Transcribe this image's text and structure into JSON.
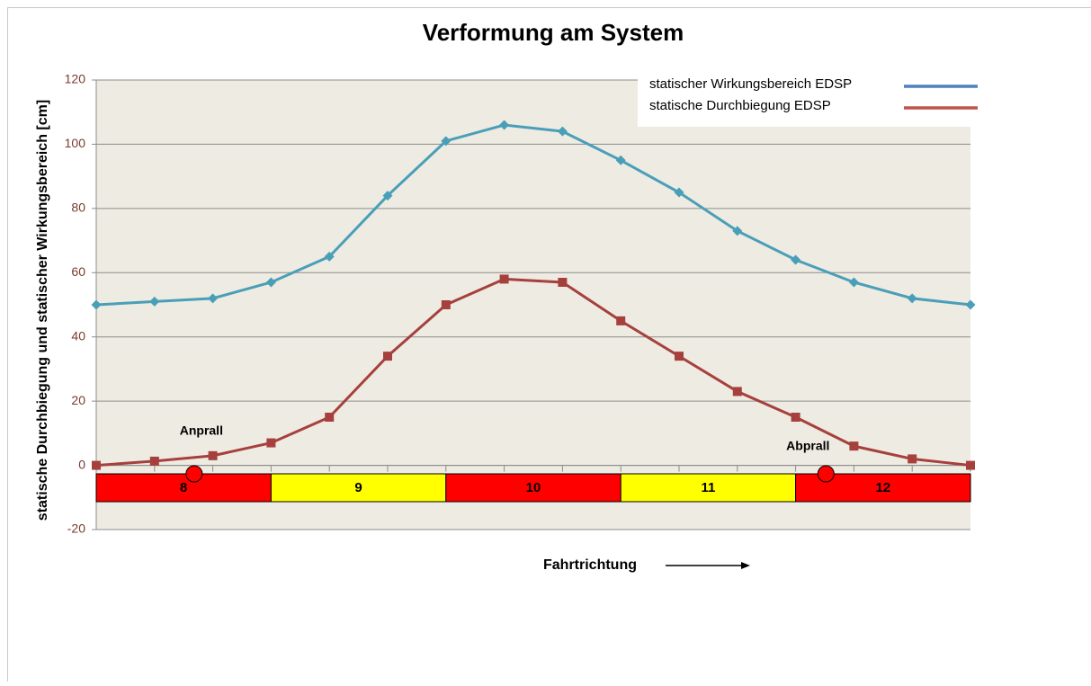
{
  "chart_data": {
    "type": "line",
    "title": "Verformung am System",
    "y_label": "statische Durchbiegung und statischer Wirkungsbereich [cm]",
    "x_label": "Fahrtrichtung",
    "categories": [
      null,
      null,
      null,
      null,
      null,
      null,
      null,
      null,
      null,
      null,
      null,
      null,
      null,
      null,
      null,
      null
    ],
    "series": [
      {
        "name": "statischer Wirkungsbereich EDSP",
        "color": "#4a9fb8",
        "legend_color": "#4f81bd",
        "marker": "diamond",
        "values": [
          50,
          51,
          52,
          57,
          65,
          84,
          101,
          106,
          104,
          95,
          85,
          73,
          64,
          57,
          52,
          50
        ]
      },
      {
        "name": "statische Durchbiegung EDSP",
        "color": "#a6403d",
        "legend_color": "#c0504d",
        "marker": "square",
        "values": [
          0,
          1.3,
          3,
          7,
          15,
          34,
          50,
          58,
          57,
          45,
          34,
          23,
          15,
          6,
          2,
          0
        ]
      }
    ],
    "ylim": [
      -20,
      120
    ],
    "yticks": [
      -20,
      0,
      20,
      40,
      60,
      80,
      100,
      120
    ],
    "grid": true,
    "segments": [
      {
        "label": "8",
        "color": "#ff0000",
        "start": 0,
        "end": 3
      },
      {
        "label": "9",
        "color": "#ffff00",
        "start": 3,
        "end": 6
      },
      {
        "label": "10",
        "color": "#ff0000",
        "start": 6,
        "end": 9
      },
      {
        "label": "11",
        "color": "#ffff00",
        "start": 9,
        "end": 12
      },
      {
        "label": "12",
        "color": "#ff0000",
        "start": 12,
        "end": 15
      }
    ],
    "annotations": [
      {
        "text": "Anprall",
        "x": 1.68
      },
      {
        "text": "Abprall",
        "x": 12.52
      }
    ]
  }
}
